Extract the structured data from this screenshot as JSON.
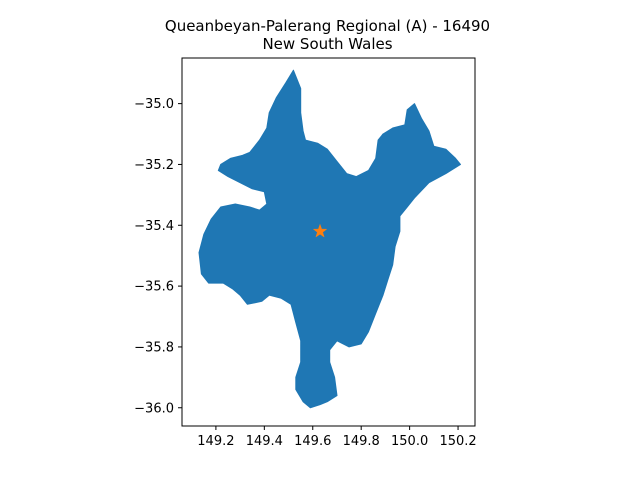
{
  "title": {
    "line1": "Queanbeyan-Palerang Regional (A) - 16490",
    "line2": "New South Wales"
  },
  "colors": {
    "region_fill": "#1f77b4",
    "marker": "#ff7f0e"
  },
  "axes": {
    "x_ticks": [
      {
        "value": 149.2,
        "label": "149.2"
      },
      {
        "value": 149.4,
        "label": "149.4"
      },
      {
        "value": 149.6,
        "label": "149.6"
      },
      {
        "value": 149.8,
        "label": "149.8"
      },
      {
        "value": 150.0,
        "label": "150.0"
      },
      {
        "value": 150.2,
        "label": "150.2"
      }
    ],
    "y_ticks": [
      {
        "value": -35.0,
        "label": "−35.0"
      },
      {
        "value": -35.2,
        "label": "−35.2"
      },
      {
        "value": -35.4,
        "label": "−35.4"
      },
      {
        "value": -35.6,
        "label": "−35.6"
      },
      {
        "value": -35.8,
        "label": "−35.8"
      },
      {
        "value": -36.0,
        "label": "−36.0"
      }
    ],
    "xlim": [
      149.06,
      150.27
    ],
    "ylim": [
      -36.06,
      -34.85
    ]
  },
  "region": {
    "name": "Queanbeyan-Palerang Regional (A)",
    "outline_lonlat": [
      [
        149.52,
        -34.89
      ],
      [
        149.55,
        -34.95
      ],
      [
        149.55,
        -35.03
      ],
      [
        149.56,
        -35.09
      ],
      [
        149.57,
        -35.12
      ],
      [
        149.62,
        -35.13
      ],
      [
        149.66,
        -35.15
      ],
      [
        149.7,
        -35.19
      ],
      [
        149.74,
        -35.23
      ],
      [
        149.78,
        -35.24
      ],
      [
        149.83,
        -35.22
      ],
      [
        149.86,
        -35.18
      ],
      [
        149.87,
        -35.12
      ],
      [
        149.89,
        -35.1
      ],
      [
        149.93,
        -35.08
      ],
      [
        149.98,
        -35.07
      ],
      [
        149.99,
        -35.02
      ],
      [
        150.02,
        -35.0
      ],
      [
        150.05,
        -35.05
      ],
      [
        150.08,
        -35.09
      ],
      [
        150.1,
        -35.14
      ],
      [
        150.15,
        -35.15
      ],
      [
        150.19,
        -35.18
      ],
      [
        150.21,
        -35.2
      ],
      [
        150.15,
        -35.23
      ],
      [
        150.08,
        -35.26
      ],
      [
        150.02,
        -35.31
      ],
      [
        149.99,
        -35.34
      ],
      [
        149.96,
        -35.37
      ],
      [
        149.96,
        -35.42
      ],
      [
        149.94,
        -35.47
      ],
      [
        149.93,
        -35.53
      ],
      [
        149.91,
        -35.58
      ],
      [
        149.89,
        -35.63
      ],
      [
        149.86,
        -35.69
      ],
      [
        149.83,
        -35.75
      ],
      [
        149.8,
        -35.79
      ],
      [
        149.75,
        -35.8
      ],
      [
        149.7,
        -35.78
      ],
      [
        149.67,
        -35.81
      ],
      [
        149.67,
        -35.85
      ],
      [
        149.69,
        -35.9
      ],
      [
        149.7,
        -35.96
      ],
      [
        149.66,
        -35.98
      ],
      [
        149.63,
        -35.99
      ],
      [
        149.59,
        -36.0
      ],
      [
        149.56,
        -35.98
      ],
      [
        149.53,
        -35.94
      ],
      [
        149.53,
        -35.9
      ],
      [
        149.55,
        -35.85
      ],
      [
        149.55,
        -35.78
      ],
      [
        149.53,
        -35.72
      ],
      [
        149.51,
        -35.66
      ],
      [
        149.47,
        -35.64
      ],
      [
        149.42,
        -35.63
      ],
      [
        149.39,
        -35.65
      ],
      [
        149.33,
        -35.66
      ],
      [
        149.3,
        -35.63
      ],
      [
        149.27,
        -35.61
      ],
      [
        149.23,
        -35.59
      ],
      [
        149.17,
        -35.59
      ],
      [
        149.14,
        -35.56
      ],
      [
        149.13,
        -35.49
      ],
      [
        149.15,
        -35.43
      ],
      [
        149.18,
        -35.38
      ],
      [
        149.22,
        -35.34
      ],
      [
        149.28,
        -35.33
      ],
      [
        149.34,
        -35.34
      ],
      [
        149.38,
        -35.35
      ],
      [
        149.41,
        -35.33
      ],
      [
        149.4,
        -35.29
      ],
      [
        149.35,
        -35.28
      ],
      [
        149.3,
        -35.26
      ],
      [
        149.25,
        -35.24
      ],
      [
        149.21,
        -35.22
      ],
      [
        149.22,
        -35.2
      ],
      [
        149.26,
        -35.18
      ],
      [
        149.31,
        -35.17
      ],
      [
        149.34,
        -35.16
      ],
      [
        149.38,
        -35.12
      ],
      [
        149.41,
        -35.08
      ],
      [
        149.42,
        -35.03
      ],
      [
        149.45,
        -34.98
      ],
      [
        149.49,
        -34.93
      ]
    ]
  },
  "marker": {
    "lon": 149.63,
    "lat": -35.42,
    "symbol": "star"
  }
}
